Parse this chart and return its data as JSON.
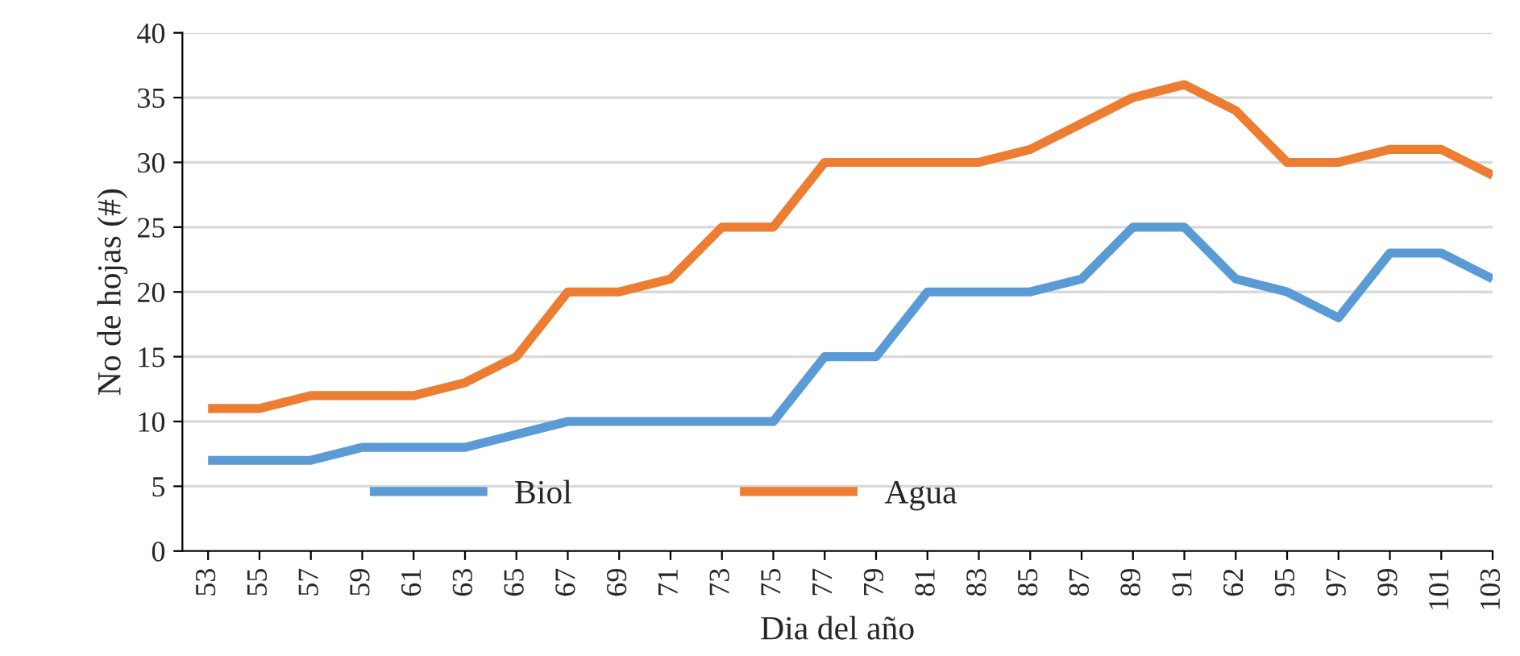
{
  "chart_data": {
    "type": "line",
    "xlabel": "Dia del año",
    "ylabel": "No de hojas (#)",
    "categories": [
      "53",
      "55",
      "57",
      "59",
      "61",
      "63",
      "65",
      "67",
      "69",
      "71",
      "73",
      "75",
      "77",
      "79",
      "81",
      "83",
      "85",
      "87",
      "89",
      "91",
      "62",
      "95",
      "97",
      "99",
      "101",
      "103"
    ],
    "series": [
      {
        "name": "Biol",
        "color": "#5b9bd5",
        "values": [
          7,
          7,
          7,
          8,
          8,
          8,
          9,
          10,
          10,
          10,
          10,
          10,
          15,
          15,
          20,
          20,
          20,
          21,
          25,
          25,
          21,
          20,
          18,
          23,
          23,
          21
        ]
      },
      {
        "name": "Agua",
        "color": "#ed7d31",
        "values": [
          11,
          11,
          12,
          12,
          12,
          13,
          15,
          20,
          20,
          21,
          25,
          25,
          30,
          30,
          30,
          30,
          31,
          33,
          35,
          36,
          34,
          30,
          30,
          31,
          31,
          29
        ]
      }
    ],
    "ylim": [
      0,
      40
    ],
    "yticks": [
      0,
      5,
      10,
      15,
      20,
      25,
      30,
      35,
      40
    ],
    "grid": "y",
    "legend": "bottom left",
    "marker": "none",
    "line_style": "solid"
  }
}
